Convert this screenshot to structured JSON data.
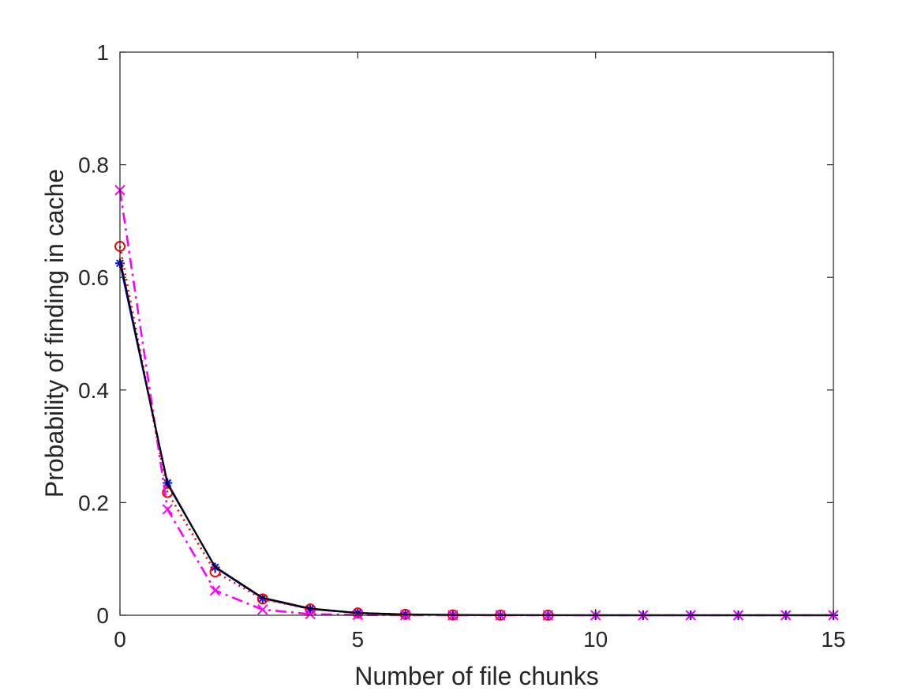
{
  "chart_data": {
    "type": "line",
    "title": "",
    "xlabel": "Number of file chunks",
    "ylabel": "Probability of finding in cache",
    "xlim": [
      0,
      15
    ],
    "ylim": [
      0,
      1
    ],
    "xticks": [
      0,
      5,
      10,
      15
    ],
    "yticks": [
      0,
      0.2,
      0.4,
      0.6,
      0.8,
      1
    ],
    "xtick_labels": [
      "0",
      "5",
      "10",
      "15"
    ],
    "ytick_labels": [
      "0",
      "0.2",
      "0.4",
      "0.6",
      "0.8",
      "1"
    ],
    "grid": false,
    "legend": "none",
    "series": [
      {
        "color": "#0000ff",
        "line_style": "solid",
        "marker": "star",
        "x": [
          0,
          1,
          2,
          3,
          4,
          5,
          6,
          7,
          8,
          9,
          10,
          11,
          12,
          13,
          14,
          15
        ],
        "y": [
          0.625,
          0.235,
          0.085,
          0.03,
          0.011,
          0.004,
          0.0015,
          0.0005,
          0.0002,
          0.0001,
          0,
          0,
          0,
          0,
          0,
          0
        ]
      },
      {
        "color": "#ff0000",
        "line_style": "dotted",
        "marker": "circle",
        "x": [
          0,
          1,
          2,
          3,
          4,
          5,
          6,
          7,
          8,
          9
        ],
        "y": [
          0.655,
          0.218,
          0.077,
          0.029,
          0.011,
          0.004,
          0.0015,
          0.0005,
          0.0002,
          0.0001
        ]
      },
      {
        "color": "#ff00ff",
        "line_style": "dashdot",
        "marker": "x",
        "x": [
          0,
          1,
          2,
          3,
          4,
          5,
          6,
          7,
          8,
          9,
          10,
          11,
          12,
          13,
          14,
          15
        ],
        "y": [
          0.755,
          0.188,
          0.044,
          0.01,
          0.002,
          0.0005,
          0.0001,
          0,
          0,
          0,
          0,
          0,
          0,
          0,
          0,
          0
        ]
      },
      {
        "color": "#000000",
        "line_style": "solid",
        "marker": "none",
        "x": [
          0,
          1,
          2,
          3,
          4,
          5,
          6,
          7,
          8,
          9,
          10,
          11,
          12,
          13,
          14,
          15
        ],
        "y": [
          0.632,
          0.233,
          0.086,
          0.031,
          0.012,
          0.004,
          0.0015,
          0.0005,
          0.0002,
          0.0001,
          0,
          0,
          0,
          0,
          0,
          0
        ]
      }
    ]
  }
}
